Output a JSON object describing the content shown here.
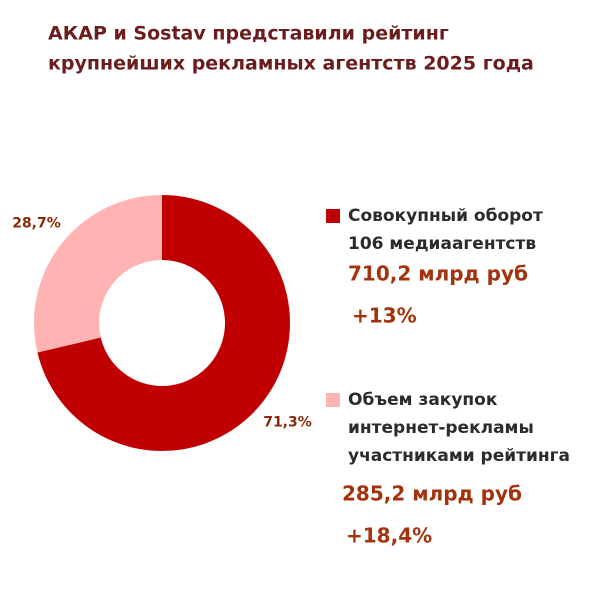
{
  "chart_data": {
    "type": "pie",
    "title": [
      "АКАР и Sostav представили рейтинг",
      "крупнейших рекламных агентств 2025 года"
    ],
    "values": [
      71.3,
      28.7
    ],
    "value_labels": [
      "71,3%",
      "28,7%"
    ],
    "colors": [
      "#c00000",
      "#ffb3b3"
    ],
    "legend": [
      {
        "name": [
          "Совокупный оборот",
          "106 медиаагентств"
        ],
        "amount": "710,2 млрд руб",
        "change": "+13%"
      },
      {
        "name": [
          "Объем закупок",
          "интернет-рекламы",
          "участниками рейтинга"
        ],
        "amount": "285,2 млрд руб",
        "change": "+18,4%"
      }
    ]
  }
}
